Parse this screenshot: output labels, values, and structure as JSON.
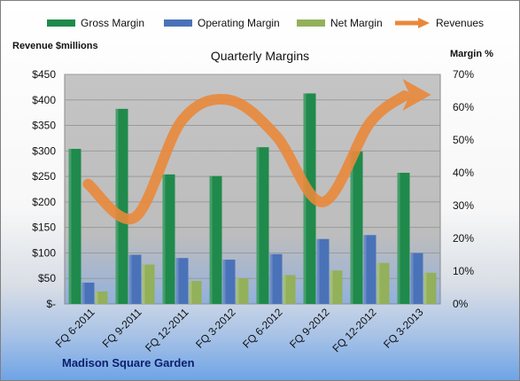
{
  "legend": {
    "gross": "Gross Margin",
    "operating": "Operating Margin",
    "net": "Net Margin",
    "revenues": "Revenues"
  },
  "footer": "Madison Square Garden",
  "colors": {
    "gross": "#1f8a4b",
    "operating": "#4a72b8",
    "net": "#93b05a",
    "revenues": "#e9883b",
    "plot_bg": "#c0c0c0"
  },
  "chart_data": {
    "type": "bar",
    "title": "Quarterly Margins",
    "ylabel_left": "Revenue $millions",
    "ylabel_right": "Margin %",
    "categories": [
      "FQ 6-2011",
      "FQ 9-2011",
      "FQ 12-2011",
      "FQ 3-2012",
      "FQ 6-2012",
      "FQ 9-2012",
      "FQ 12-2012",
      "FQ 3-2013"
    ],
    "y_left_ticks": [
      "$-",
      "$50",
      "$100",
      "$150",
      "$200",
      "$250",
      "$300",
      "$350",
      "$400",
      "$450"
    ],
    "y_right_ticks": [
      "0%",
      "10%",
      "20%",
      "30%",
      "40%",
      "50%",
      "60%",
      "70%"
    ],
    "ylim_left": [
      0,
      450
    ],
    "ylim_right": [
      0,
      70
    ],
    "series": [
      {
        "name": "Gross Margin",
        "axis": "right",
        "type": "bar",
        "values": [
          47.3,
          59.5,
          39.5,
          39.0,
          47.8,
          64.2,
          46.5,
          40.0
        ]
      },
      {
        "name": "Operating Margin",
        "axis": "right",
        "type": "bar",
        "values": [
          6.5,
          15.0,
          14.0,
          13.5,
          15.2,
          19.8,
          21.0,
          15.5
        ]
      },
      {
        "name": "Net Margin",
        "axis": "right",
        "type": "bar",
        "values": [
          3.8,
          12.0,
          7.0,
          7.8,
          8.8,
          10.2,
          12.5,
          9.5
        ]
      },
      {
        "name": "Revenues",
        "axis": "left",
        "type": "line",
        "values": [
          235,
          170,
          360,
          400,
          330,
          200,
          355,
          410
        ]
      }
    ],
    "grid": true,
    "legend_position": "top"
  }
}
